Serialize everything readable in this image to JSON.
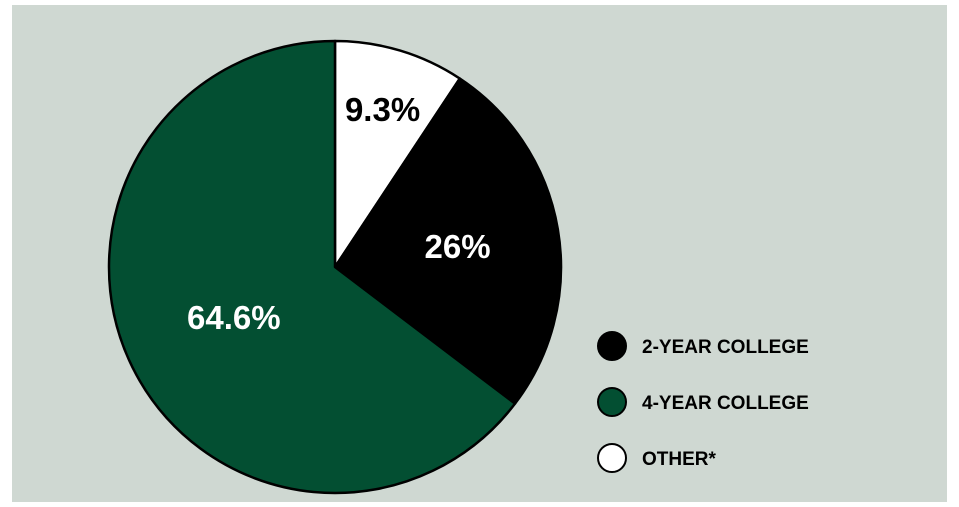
{
  "chart_data": {
    "type": "pie",
    "slices": [
      {
        "label": "OTHER*",
        "value": 9.3,
        "display": "9.3%",
        "color": "#ffffff",
        "text_color": "#000000"
      },
      {
        "label": "2-YEAR COLLEGE",
        "value": 26,
        "display": "26%",
        "color": "#000000",
        "text_color": "#ffffff"
      },
      {
        "label": "4-YEAR COLLEGE",
        "value": 64.6,
        "display": "64.6%",
        "color": "#034f32",
        "text_color": "#ffffff"
      }
    ],
    "legend": [
      "2-YEAR COLLEGE",
      "4-YEAR COLLEGE",
      "OTHER*"
    ],
    "legend_position": "right",
    "start_angle": "top",
    "direction": "clockwise"
  },
  "colors": {
    "panel_background": "#cfd8d2",
    "outline": "#000000"
  }
}
